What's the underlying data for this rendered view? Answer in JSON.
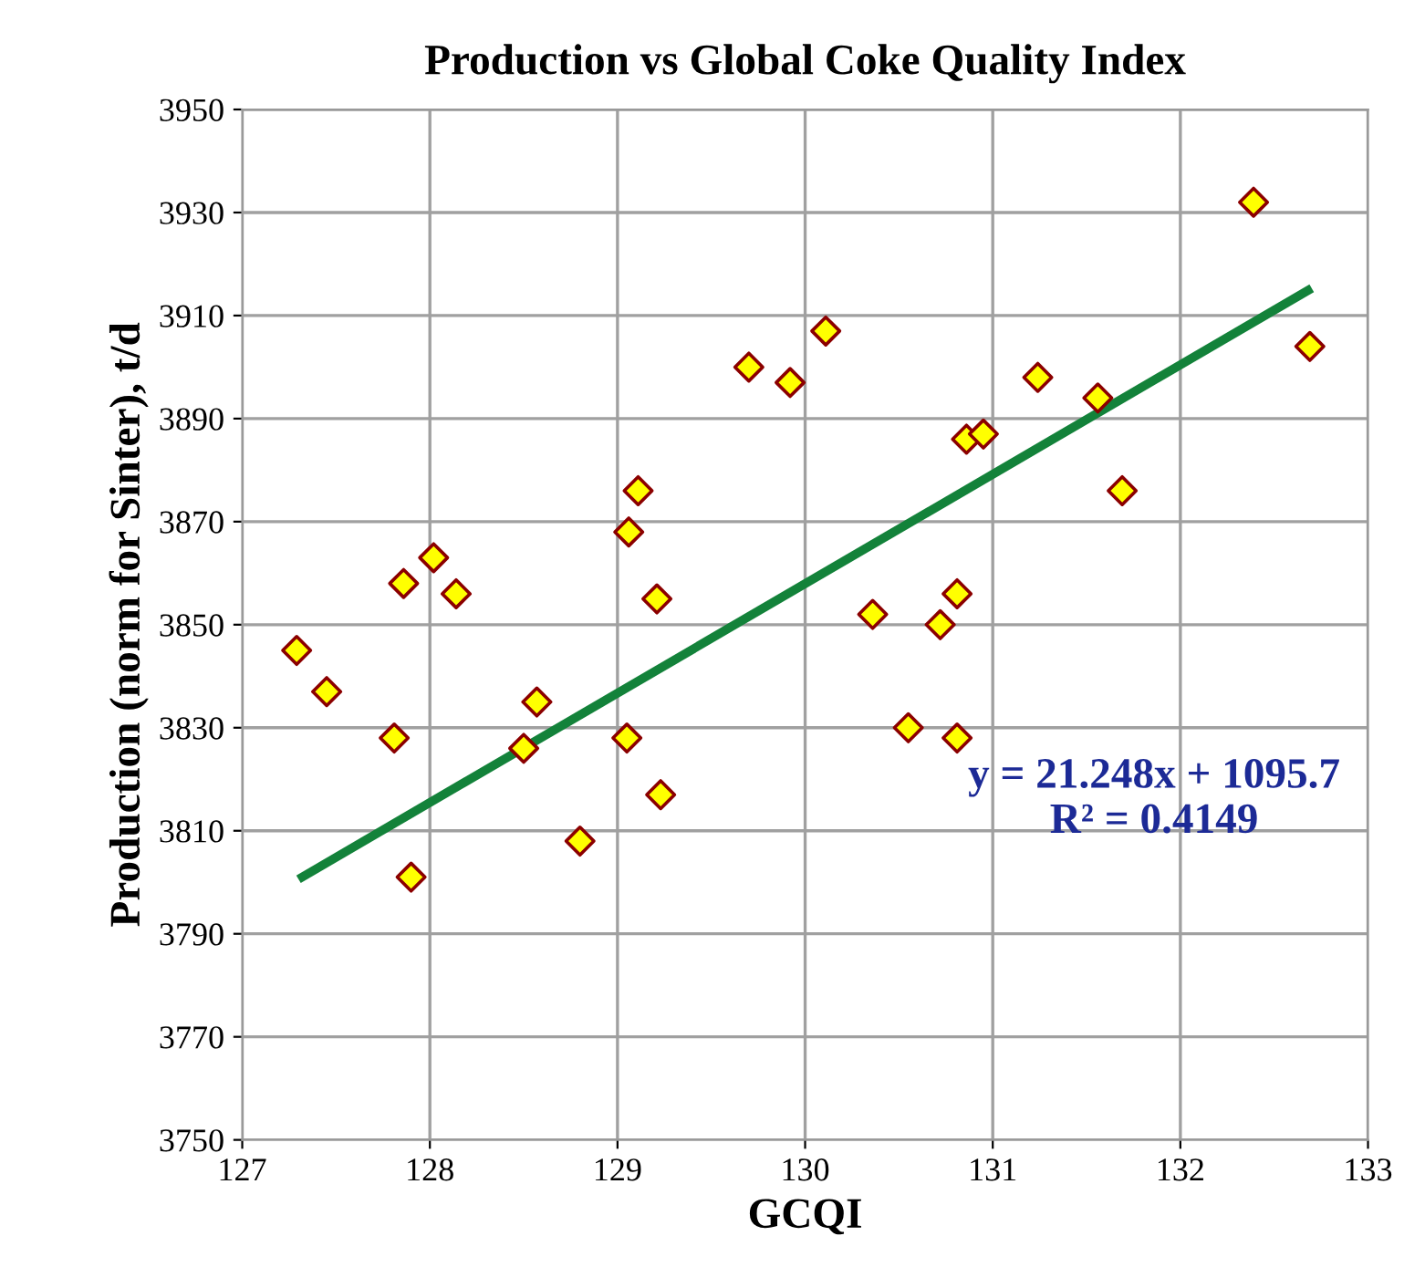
{
  "chart_data": {
    "type": "scatter",
    "title": "Production vs Global Coke Quality Index",
    "xlabel": "GCQI",
    "ylabel": "Production (norm for Sinter), t/d",
    "xlim": [
      127,
      133
    ],
    "xticks": [
      127,
      128,
      129,
      130,
      131,
      132,
      133
    ],
    "ylim": [
      3750,
      3950
    ],
    "yticks": [
      3750,
      3770,
      3790,
      3810,
      3830,
      3850,
      3870,
      3890,
      3910,
      3930,
      3950
    ],
    "grid": true,
    "legend": false,
    "series": [
      {
        "marker": "diamond",
        "color": "#ffff00",
        "x": [
          127.29,
          127.45,
          127.81,
          127.9,
          127.86,
          128.02,
          128.14,
          128.5,
          128.57,
          128.8,
          129.05,
          129.06,
          129.11,
          129.21,
          129.23,
          129.7,
          129.92,
          130.11,
          130.36,
          130.55,
          130.72,
          130.81,
          130.81,
          130.86,
          130.95,
          131.24,
          131.56,
          131.69,
          132.39,
          132.69
        ],
        "values": [
          3845,
          3837,
          3828,
          3801,
          3858,
          3863,
          3856,
          3826,
          3835,
          3808,
          3828,
          3868,
          3876,
          3855,
          3817,
          3900,
          3897,
          3907,
          3852,
          3830,
          3850,
          3856,
          3828,
          3886,
          3887,
          3898,
          3894,
          3876,
          3932,
          3904
        ]
      },
      {
        "type": "line",
        "color": "#13823a",
        "x": [
          127.3,
          132.7
        ],
        "values": [
          3800.6,
          3915.3
        ]
      }
    ],
    "annotations": [
      "y = 21.248x + 1095.7\nR² = 0.4149"
    ]
  }
}
